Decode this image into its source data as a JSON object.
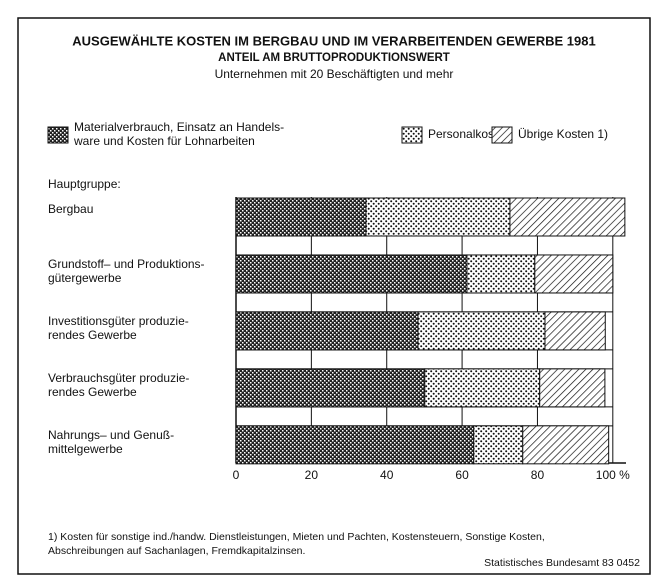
{
  "chart_data": {
    "type": "stacked-barh",
    "title": "AUSGEWÄHLTE KOSTEN IM BERGBAU UND IM VERARBEITENDEN GEWERBE 1981",
    "subtitle": "ANTEIL AM BRUTTOPRODUKTIONSWERT",
    "subtitle2": "Unternehmen mit 20 Beschäftigten und mehr",
    "category_header": "Hauptgruppe:",
    "categories": [
      "Bergbau",
      "Grundstoff– und Produktions-\ngütergewerbe",
      "Investitionsgüter produzie-\nrendes Gewerbe",
      "Verbrauchsgüter produzie-\nrendes Gewerbe",
      "Nahrungs– und Genuß-\nmittelgewerbe"
    ],
    "series": [
      {
        "name": "Materialverbrauch, Einsatz an Handels-\nware und Kosten für Lohnarbeiten",
        "color": "#111",
        "pattern": "crosshatch",
        "values": [
          34.5,
          61.3,
          48.3,
          50.1,
          63.1
        ]
      },
      {
        "name": "Personalkosten",
        "color": "#111",
        "pattern": "dots",
        "values": [
          38.2,
          18,
          33.7,
          30.5,
          13
        ]
      },
      {
        "name": "Übrige Kosten 1)",
        "color": "#111",
        "pattern": "diagonal",
        "values": [
          30.5,
          20.7,
          16,
          17.3,
          22.8
        ]
      }
    ],
    "xlim": [
      0,
      103.5
    ],
    "xticks": [
      0,
      20,
      40,
      60,
      80,
      {
        "value": 100,
        "label": "100 %"
      }
    ],
    "grid": true,
    "footnote": "1) Kosten für sonstige ind./handw. Dienstleistungen, Mieten und Pachten, Kostensteuern, Sonstige Kosten,\nAbschreibungen auf Sachanlagen, Fremdkapitalzinsen.",
    "source": "Statistisches Bundesamt 83 0452"
  }
}
